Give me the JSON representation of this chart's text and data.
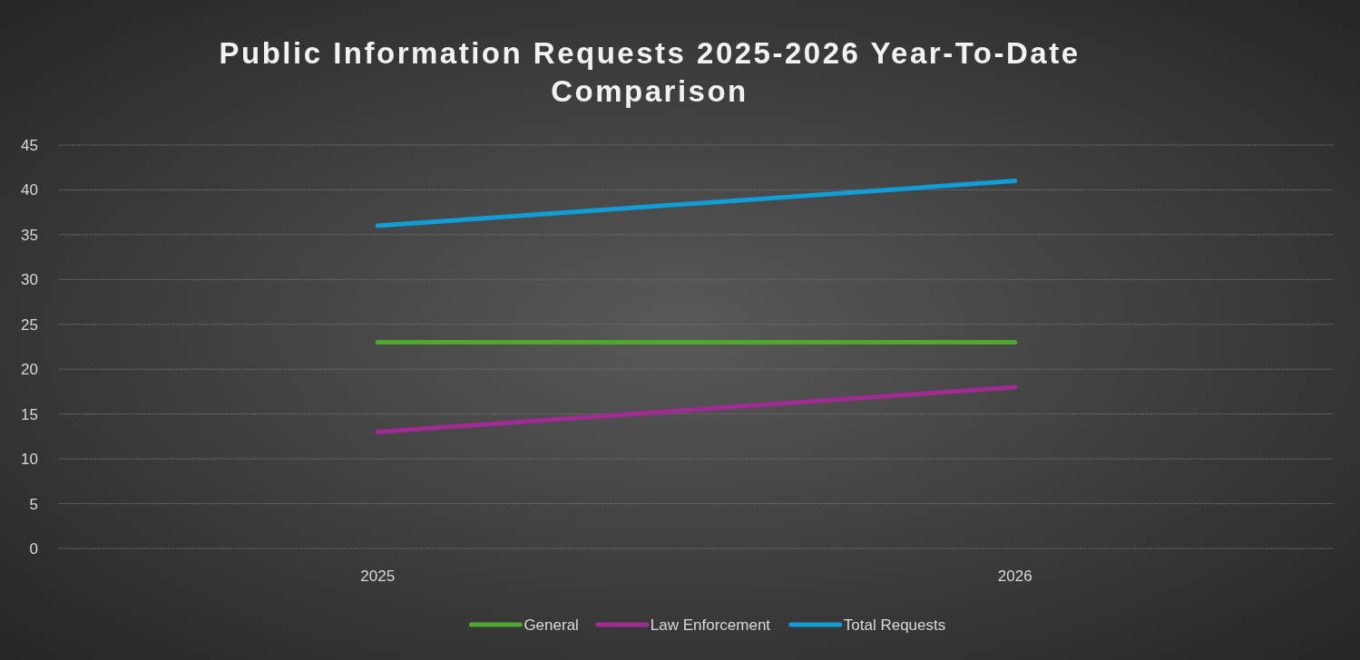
{
  "chart_data": {
    "type": "line",
    "title": "Public Information Requests 2025-2026 Year-To-Date Comparison",
    "categories": [
      "2025",
      "2026"
    ],
    "series": [
      {
        "name": "General",
        "color": "#4ea72e",
        "values": [
          23,
          23
        ]
      },
      {
        "name": "Law Enforcement",
        "color": "#a02b93",
        "values": [
          13,
          18
        ]
      },
      {
        "name": "Total Requests",
        "color": "#0f9ed5",
        "values": [
          36,
          41
        ]
      }
    ],
    "ylim": [
      0,
      45
    ],
    "yticks": [
      0,
      5,
      10,
      15,
      20,
      25,
      30,
      35,
      40,
      45
    ],
    "grid": "y",
    "legend": "bottom",
    "marker": "none",
    "line_style": "solid"
  }
}
